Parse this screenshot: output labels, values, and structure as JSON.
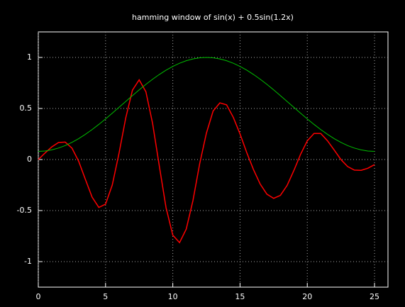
{
  "chart_data": {
    "type": "line",
    "title": "hamming window of sin(x) + 0.5sin(1.2x)",
    "x": [
      0,
      0.5,
      1,
      1.5,
      2,
      2.5,
      3,
      3.5,
      4,
      4.5,
      5,
      5.5,
      6,
      6.5,
      7,
      7.5,
      8,
      8.5,
      9,
      9.5,
      10,
      10.5,
      11,
      11.5,
      12,
      12.5,
      13,
      13.5,
      14,
      14.5,
      15,
      15.5,
      16,
      16.5,
      17,
      17.5,
      18,
      18.5,
      19,
      19.5,
      20,
      20.5,
      21,
      21.5,
      22,
      22.5,
      23,
      23.5,
      24,
      24.5,
      25
    ],
    "series": [
      {
        "color": "#ff0000",
        "values": [
          0,
          0.0637,
          0.1235,
          0.1667,
          0.1707,
          0.1123,
          -0.0164,
          -0.1941,
          -0.3683,
          -0.4693,
          -0.4371,
          -0.2495,
          0.06,
          0.4064,
          0.679,
          0.7804,
          0.6639,
          0.3527,
          -0.0654,
          -0.4725,
          -0.7409,
          -0.8138,
          -0.6812,
          -0.4013,
          -0.0406,
          0.2588,
          0.4756,
          0.5549,
          0.5355,
          0.4127,
          0.2506,
          0.0677,
          -0.0986,
          -0.2407,
          -0.3396,
          -0.3801,
          -0.3507,
          -0.2538,
          -0.1085,
          0.0509,
          0.1831,
          0.2556,
          0.2554,
          0.1843,
          0.093,
          0.0003,
          -0.0689,
          -0.1032,
          -0.1058,
          -0.0855,
          -0.0501
        ]
      },
      {
        "color": "#00c000",
        "values": [
          0.08,
          0.0836,
          0.0945,
          0.1123,
          0.1369,
          0.1679,
          0.2047,
          0.2468,
          0.2935,
          0.3441,
          0.3979,
          0.4538,
          0.5111,
          0.5689,
          0.6262,
          0.6821,
          0.7359,
          0.7865,
          0.8332,
          0.8753,
          0.9121,
          0.9431,
          0.9677,
          0.9855,
          0.9964,
          1,
          0.9964,
          0.9855,
          0.9677,
          0.9431,
          0.9121,
          0.8753,
          0.8332,
          0.7865,
          0.7359,
          0.6821,
          0.6262,
          0.5689,
          0.5111,
          0.4538,
          0.3979,
          0.3441,
          0.2935,
          0.2468,
          0.2047,
          0.1679,
          0.1369,
          0.1123,
          0.0945,
          0.0836,
          0.08
        ]
      }
    ],
    "xlim": [
      0,
      26
    ],
    "xticks": [
      0,
      5,
      10,
      15,
      20,
      25
    ],
    "ylim": [
      -1.25,
      1.25
    ],
    "yticks": [
      -1,
      -0.5,
      0,
      0.5,
      1
    ],
    "grid": true
  }
}
